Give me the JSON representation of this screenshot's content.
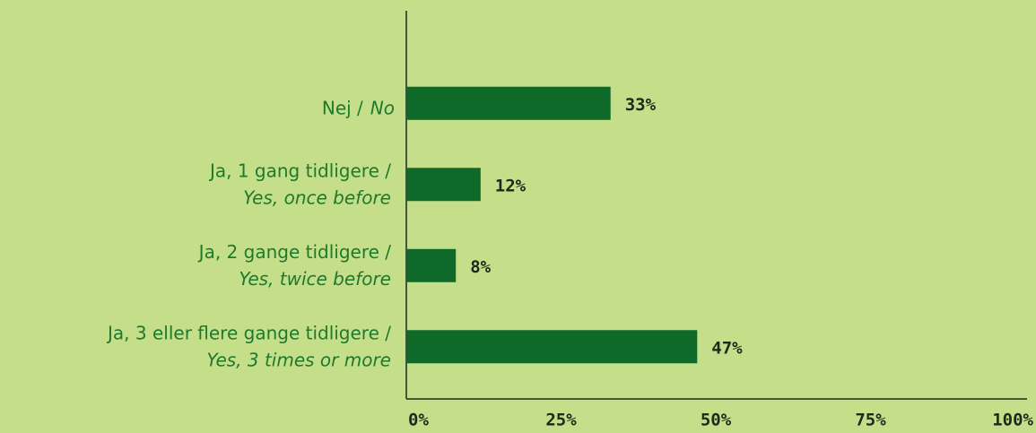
{
  "chart_data": {
    "type": "barh",
    "categories": [
      "Nej /",
      "Ja, 1 gang tidligere /",
      "Ja, 2 gange tidligere /",
      "Ja, 3 eller flere gange tidligere /"
    ],
    "category_translations": [
      "No",
      "Yes, once before",
      "Yes, twice before",
      "Yes, 3 times or more"
    ],
    "values": [
      33,
      12,
      8,
      47
    ],
    "value_labels": [
      "33%",
      "12%",
      "8%",
      "47%"
    ],
    "color": "#0f6a2a",
    "xlim": [
      0,
      100
    ],
    "xticks": [
      {
        "value": 0,
        "label": "0%"
      },
      {
        "value": 25,
        "label": "25%"
      },
      {
        "value": 50,
        "label": "50%"
      },
      {
        "value": 75,
        "label": "75%"
      },
      {
        "value": 100,
        "label": "100%"
      }
    ],
    "grid": false
  }
}
